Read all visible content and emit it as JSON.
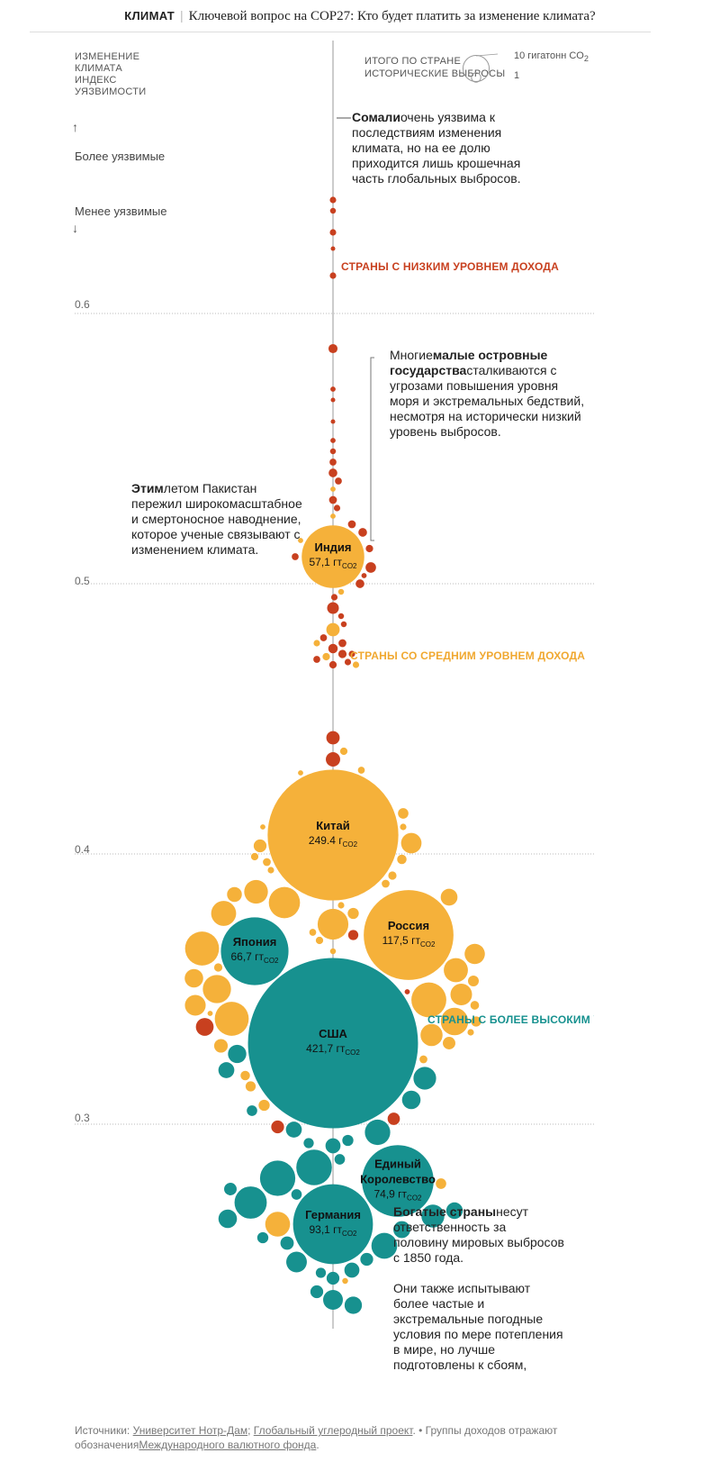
{
  "header": {
    "section": "КЛИМАТ",
    "headline": "Ключевой вопрос на COP27: Кто будет платить за изменение климата?"
  },
  "axis": {
    "title_lines": [
      "ИЗМЕНЕНИЕ",
      "КЛИМАТА",
      "ИНДЕКС",
      "УЯЗВИМОСТИ"
    ],
    "arrow_up": "↑",
    "more_vulnerable": "Более уязвимые",
    "less_vulnerable": "Менее уязвимые",
    "arrow_down": "↓"
  },
  "legend": {
    "title_lines": [
      "ИТОГО ПО СТРАНЕ",
      "ИСТОРИЧЕСКИЕ ВЫБРОСЫ"
    ],
    "big_label": "10 гигатонн CO",
    "big_sub": "2",
    "small_label": "1"
  },
  "colors": {
    "low_income": "#c8401f",
    "middle_income": "#f5b13a",
    "high_income": "#17918f",
    "axis_line": "#999999",
    "gridline": "#bbbbbb"
  },
  "annotations": {
    "somalia_bold": "Сомали",
    "somalia_text": "очень уязвима к последствиям изменения климата, но на ее долю приходится лишь крошечная часть глобальных выбросов.",
    "islands_prefix": "Многие",
    "islands_bold": "малые островные государства",
    "islands_text": "сталкиваются с угрозами повышения уровня моря и экстремальных бедствий, несмотря на исторически низкий уровень выбросов.",
    "pakistan_bold": "Этим",
    "pakistan_text": "летом Пакистан пережил широкомасштабное и смертоносное наводнение, которое ученые связывают с изменением климата.",
    "rich_bold": "Богатые страны",
    "rich_text": "несут ответственность за половину мировых выбросов с 1850 года.",
    "rich_text2": "Они также испытывают более частые и экстремальные погодные условия по мере потепления в мире, но лучше подготовлены к сбоям, связанным с климатом"
  },
  "groups": {
    "low": "СТРАНЫ С НИЗКИМ УРОВНЕМ ДОХОДА",
    "middle": "СТРАНЫ СО СРЕДНИМ УРОВНЕМ ДОХОДА",
    "high": "СТРАНЫ С БОЛЕЕ ВЫСОКИМ У"
  },
  "source": {
    "prefix": "Источники: ",
    "link1": "Университет Нотр-Дам",
    "sep": "; ",
    "link2": "Глобальный углеродный проект",
    "dot": ".  •  ",
    "note": "Группы доходов отражают обозначения",
    "link3": "Международного валютного фонда",
    "end": "."
  },
  "chart_data": {
    "type": "bubble",
    "title": "Ключевой вопрос на COP27: Кто будет платить за изменение климата?",
    "ylabel": "ИЗМЕНЕНИЕ КЛИМАТА ИНДЕКС УЯЗВИМОСТИ",
    "size_label": "ИТОГО ПО СТРАНЕ ИСТОРИЧЕСКИЕ ВЫБРОСЫ (гигатонн CO2)",
    "y_ticks": [
      0.6,
      0.5,
      0.4,
      0.3
    ],
    "ylim": [
      0.25,
      0.7
    ],
    "legend_sizes": [
      10,
      1
    ],
    "labeled": [
      {
        "name": "Индия",
        "value_label": "57,1 гт",
        "unit": "CO2",
        "emissions": 57.1,
        "index": 0.51,
        "group": "middle"
      },
      {
        "name": "Китай",
        "value_label": "249.4 г",
        "unit": "CO2",
        "emissions": 249.4,
        "index": 0.407,
        "group": "middle"
      },
      {
        "name": "Россия",
        "value_label": "117,5 гт",
        "unit": "CO2",
        "emissions": 117.5,
        "index": 0.37,
        "group": "middle"
      },
      {
        "name": "Япония",
        "value_label": "66,7 гт",
        "unit": "CO2",
        "emissions": 66.7,
        "index": 0.364,
        "group": "high"
      },
      {
        "name": "США",
        "value_label": "421,7 гт",
        "unit": "CO2",
        "emissions": 421.7,
        "index": 0.33,
        "group": "high"
      },
      {
        "name": "Единый Королевство",
        "name_lines": [
          "Единый",
          "Королевство"
        ],
        "value_label": "74,9 гт",
        "unit": "CO2",
        "emissions": 74.9,
        "index": 0.279,
        "group": "high"
      },
      {
        "name": "Германия",
        "value_label": "93,1 гт",
        "unit": "CO2",
        "emissions": 93.1,
        "index": 0.263,
        "group": "high"
      }
    ],
    "other_points": [
      [
        0.642,
        0.6,
        "low"
      ],
      [
        0.638,
        0.5,
        "low"
      ],
      [
        0.63,
        0.6,
        "low"
      ],
      [
        0.624,
        0.3,
        "low"
      ],
      [
        0.614,
        0.6,
        "low"
      ],
      [
        0.587,
        1.2,
        "low"
      ],
      [
        0.572,
        0.4,
        "low"
      ],
      [
        0.568,
        0.3,
        "low"
      ],
      [
        0.56,
        0.3,
        "low"
      ],
      [
        0.553,
        0.4,
        "low"
      ],
      [
        0.549,
        0.5,
        "low"
      ],
      [
        0.545,
        0.7,
        "low"
      ],
      [
        0.541,
        1.1,
        "low"
      ],
      [
        0.538,
        0.7,
        "low"
      ],
      [
        0.535,
        0.4,
        "middle"
      ],
      [
        0.531,
        0.9,
        "low"
      ],
      [
        0.528,
        0.6,
        "low"
      ],
      [
        0.525,
        0.4,
        "middle"
      ],
      [
        0.522,
        0.9,
        "low"
      ],
      [
        0.519,
        1.1,
        "low"
      ],
      [
        0.516,
        0.4,
        "middle"
      ],
      [
        0.513,
        0.8,
        "low"
      ],
      [
        0.51,
        0.7,
        "low"
      ],
      [
        0.506,
        1.6,
        "low"
      ],
      [
        0.503,
        0.4,
        "low"
      ],
      [
        0.5,
        1.1,
        "low"
      ],
      [
        0.497,
        0.5,
        "middle"
      ],
      [
        0.495,
        0.6,
        "low"
      ],
      [
        0.491,
        2.0,
        "low"
      ],
      [
        0.488,
        0.5,
        "low"
      ],
      [
        0.485,
        0.5,
        "low"
      ],
      [
        0.483,
        2.6,
        "middle"
      ],
      [
        0.48,
        0.7,
        "low"
      ],
      [
        0.478,
        0.9,
        "low"
      ],
      [
        0.478,
        0.6,
        "middle"
      ],
      [
        0.476,
        1.3,
        "low"
      ],
      [
        0.474,
        1.0,
        "low"
      ],
      [
        0.474,
        0.6,
        "low"
      ],
      [
        0.473,
        0.8,
        "middle"
      ],
      [
        0.472,
        0.7,
        "low"
      ],
      [
        0.471,
        0.6,
        "low"
      ],
      [
        0.47,
        0.6,
        "middle"
      ],
      [
        0.47,
        0.8,
        "low"
      ],
      [
        0.443,
        2.6,
        "low"
      ],
      [
        0.438,
        0.8,
        "middle"
      ],
      [
        0.435,
        3.0,
        "low"
      ],
      [
        0.431,
        0.7,
        "middle"
      ],
      [
        0.43,
        0.4,
        "middle"
      ],
      [
        0.415,
        1.6,
        "middle"
      ],
      [
        0.41,
        0.6,
        "middle"
      ],
      [
        0.41,
        0.4,
        "middle"
      ],
      [
        0.404,
        6.1,
        "middle"
      ],
      [
        0.403,
        2.4,
        "middle"
      ],
      [
        0.399,
        0.8,
        "middle"
      ],
      [
        0.398,
        1.3,
        "middle"
      ],
      [
        0.397,
        0.9,
        "middle"
      ],
      [
        0.394,
        0.6,
        "middle"
      ],
      [
        0.392,
        1.0,
        "middle"
      ],
      [
        0.389,
        0.9,
        "middle"
      ],
      [
        0.386,
        8.2,
        "middle"
      ],
      [
        0.385,
        3.2,
        "middle"
      ],
      [
        0.384,
        4.1,
        "middle"
      ],
      [
        0.382,
        14.2,
        "middle"
      ],
      [
        0.381,
        0.6,
        "middle"
      ],
      [
        0.378,
        9.1,
        "middle"
      ],
      [
        0.378,
        1.8,
        "middle"
      ],
      [
        0.374,
        13.8,
        "middle"
      ],
      [
        0.371,
        0.7,
        "middle"
      ],
      [
        0.37,
        1.5,
        "low"
      ],
      [
        0.368,
        0.8,
        "middle"
      ],
      [
        0.365,
        16.8,
        "middle"
      ],
      [
        0.364,
        0.5,
        "middle"
      ],
      [
        0.363,
        6.0,
        "middle"
      ],
      [
        0.358,
        1.0,
        "middle"
      ],
      [
        0.357,
        8.5,
        "middle"
      ],
      [
        0.354,
        5.0,
        "middle"
      ],
      [
        0.353,
        1.7,
        "middle"
      ],
      [
        0.35,
        11.6,
        "middle"
      ],
      [
        0.349,
        0.4,
        "low"
      ],
      [
        0.348,
        6.8,
        "middle"
      ],
      [
        0.346,
        17.8,
        "middle"
      ],
      [
        0.344,
        6.3,
        "middle"
      ],
      [
        0.344,
        1.1,
        "middle"
      ],
      [
        0.341,
        0.4,
        "middle"
      ],
      [
        0.339,
        16.8,
        "middle"
      ],
      [
        0.338,
        1.5,
        "middle"
      ],
      [
        0.338,
        11.0,
        "middle"
      ],
      [
        0.336,
        4.6,
        "low"
      ],
      [
        0.334,
        0.6,
        "middle"
      ],
      [
        0.333,
        7.1,
        "middle"
      ],
      [
        0.33,
        2.3,
        "middle"
      ],
      [
        0.329,
        2.7,
        "middle"
      ],
      [
        0.326,
        4.9,
        "high"
      ],
      [
        0.324,
        0.9,
        "middle"
      ],
      [
        0.32,
        3.7,
        "high"
      ],
      [
        0.318,
        1.3,
        "middle"
      ],
      [
        0.317,
        7.5,
        "high"
      ],
      [
        0.314,
        1.5,
        "middle"
      ],
      [
        0.309,
        5.0,
        "high"
      ],
      [
        0.307,
        1.8,
        "middle"
      ],
      [
        0.305,
        1.6,
        "high"
      ],
      [
        0.302,
        2.2,
        "low"
      ],
      [
        0.299,
        2.4,
        "low"
      ],
      [
        0.298,
        3.7,
        "high"
      ],
      [
        0.297,
        9.4,
        "high"
      ],
      [
        0.294,
        1.8,
        "high"
      ],
      [
        0.293,
        1.5,
        "high"
      ],
      [
        0.292,
        3.3,
        "high"
      ],
      [
        0.287,
        1.6,
        "high"
      ],
      [
        0.284,
        18.5,
        "high"
      ],
      [
        0.28,
        18.2,
        "high"
      ],
      [
        0.278,
        1.6,
        "middle"
      ],
      [
        0.276,
        2.3,
        "high"
      ],
      [
        0.274,
        1.6,
        "high"
      ],
      [
        0.271,
        15.2,
        "high"
      ],
      [
        0.268,
        4.0,
        "high"
      ],
      [
        0.266,
        7.7,
        "high"
      ],
      [
        0.265,
        5.0,
        "high"
      ],
      [
        0.263,
        9.0,
        "middle"
      ],
      [
        0.261,
        4.2,
        "high"
      ],
      [
        0.258,
        1.8,
        "high"
      ],
      [
        0.256,
        2.6,
        "high"
      ],
      [
        0.255,
        9.7,
        "high"
      ],
      [
        0.25,
        2.4,
        "high"
      ],
      [
        0.249,
        6.2,
        "high"
      ],
      [
        0.246,
        3.3,
        "high"
      ],
      [
        0.245,
        1.5,
        "high"
      ],
      [
        0.243,
        2.4,
        "high"
      ],
      [
        0.242,
        0.5,
        "middle"
      ],
      [
        0.238,
        2.4,
        "high"
      ],
      [
        0.235,
        5.7,
        "high"
      ],
      [
        0.233,
        4.4,
        "high"
      ]
    ]
  }
}
